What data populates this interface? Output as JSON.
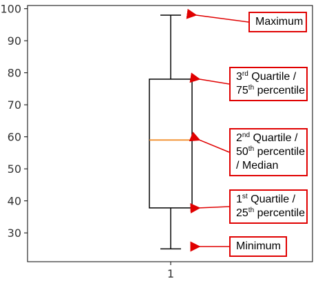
{
  "chart_data": {
    "type": "box",
    "categories": [
      "1"
    ],
    "boxes": [
      {
        "category": "1",
        "min": 25,
        "q1": 37.8,
        "median": 59,
        "q3": 78,
        "max": 98
      }
    ],
    "y_ticks": [
      30,
      40,
      50,
      60,
      70,
      80,
      90,
      100
    ],
    "ylim": [
      21,
      101
    ],
    "median_color": "#f28e2b",
    "annotation_color": "#e00000",
    "annotations": [
      {
        "key": "max",
        "target": "max",
        "lines": [
          [
            {
              "t": "Maximum"
            }
          ]
        ]
      },
      {
        "key": "q3",
        "target": "q3",
        "lines": [
          [
            {
              "t": "3"
            },
            {
              "t": "rd",
              "sup": true
            },
            {
              "t": " Quartile /"
            }
          ],
          [
            {
              "t": "75"
            },
            {
              "t": "th",
              "sup": true
            },
            {
              "t": " percentile"
            }
          ]
        ]
      },
      {
        "key": "median",
        "target": "median",
        "lines": [
          [
            {
              "t": "2"
            },
            {
              "t": "nd",
              "sup": true
            },
            {
              "t": " Quartile /"
            }
          ],
          [
            {
              "t": "50"
            },
            {
              "t": "th",
              "sup": true
            },
            {
              "t": " percentile"
            }
          ],
          [
            {
              "t": "/ Median"
            }
          ]
        ]
      },
      {
        "key": "q1",
        "target": "q1",
        "lines": [
          [
            {
              "t": "1"
            },
            {
              "t": "st",
              "sup": true
            },
            {
              "t": " Quartile /"
            }
          ],
          [
            {
              "t": "25"
            },
            {
              "t": "th",
              "sup": true
            },
            {
              "t": " percentile"
            }
          ]
        ]
      },
      {
        "key": "min",
        "target": "min",
        "lines": [
          [
            {
              "t": "Minimum"
            }
          ]
        ]
      }
    ]
  }
}
